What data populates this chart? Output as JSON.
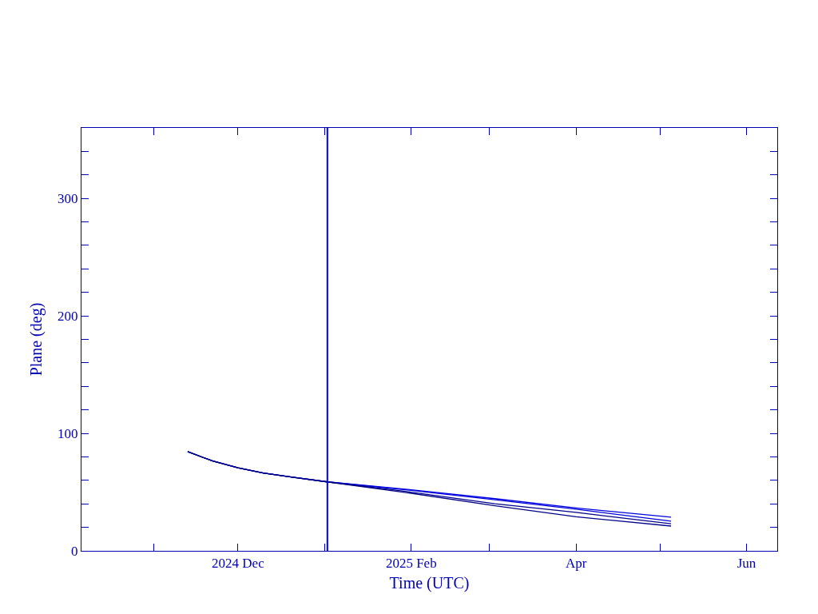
{
  "chart_data": {
    "type": "line",
    "xlabel": "Time (UTC)",
    "ylabel": "Plane (deg)",
    "xlim": [
      "2024-10-06",
      "2025-06-12"
    ],
    "ylim": [
      0,
      360
    ],
    "xticks": [
      {
        "value": "2024-11-01",
        "label": null
      },
      {
        "value": "2024-12-01",
        "label": "2024 Dec"
      },
      {
        "value": "2025-01-01",
        "label": null
      },
      {
        "value": "2025-02-01",
        "label": "2025 Feb"
      },
      {
        "value": "2025-03-01",
        "label": null
      },
      {
        "value": "2025-04-01",
        "label": "Apr"
      },
      {
        "value": "2025-05-01",
        "label": null
      },
      {
        "value": "2025-06-01",
        "label": "Jun"
      }
    ],
    "yticks": [
      0,
      {
        "value": 20,
        "label": null
      },
      {
        "value": 40,
        "label": null
      },
      {
        "value": 60,
        "label": null
      },
      {
        "value": 80,
        "label": null
      },
      100,
      {
        "value": 120,
        "label": null
      },
      {
        "value": 140,
        "label": null
      },
      {
        "value": 160,
        "label": null
      },
      {
        "value": 180,
        "label": null
      },
      200,
      {
        "value": 220,
        "label": null
      },
      {
        "value": 240,
        "label": null
      },
      {
        "value": 260,
        "label": null
      },
      {
        "value": 280,
        "label": null
      },
      300,
      {
        "value": 320,
        "label": null
      },
      {
        "value": 340,
        "label": null
      }
    ],
    "series": [
      {
        "color": "#0000e0",
        "x": [
          "2024-11-13",
          "2024-11-22",
          "2024-12-01",
          "2024-12-10",
          "2024-12-20",
          "2025-01-02",
          "2025-02-01",
          "2025-03-03",
          "2025-04-01",
          "2025-05-05"
        ],
        "values": [
          84.4,
          76.4,
          70.7,
          66.2,
          62.8,
          58.7,
          52,
          44.4,
          36.5,
          28.6
        ]
      },
      {
        "color": "#0000e0",
        "x": [
          "2024-11-13",
          "2024-11-22",
          "2024-12-01",
          "2024-12-10",
          "2024-12-20",
          "2025-01-02",
          "2025-02-01",
          "2025-03-03",
          "2025-04-01",
          "2025-05-05"
        ],
        "values": [
          84.4,
          76.4,
          70.7,
          66.2,
          62.8,
          58.7,
          51.5,
          43.5,
          35.5,
          25.2
        ]
      },
      {
        "color": "#00008b",
        "x": [
          "2024-11-13",
          "2024-11-22",
          "2024-12-01",
          "2024-12-10",
          "2024-12-20",
          "2025-01-02",
          "2025-02-01",
          "2025-03-03",
          "2025-04-01",
          "2025-05-05"
        ],
        "values": [
          84.4,
          76.4,
          70.7,
          66.2,
          62.8,
          58.7,
          50,
          40,
          32.7,
          23.1
        ]
      },
      {
        "color": "#00008b",
        "x": [
          "2024-11-13",
          "2024-11-22",
          "2024-12-01",
          "2024-12-10",
          "2024-12-20",
          "2025-01-02",
          "2025-02-01",
          "2025-03-03",
          "2025-04-01",
          "2025-05-05"
        ],
        "values": [
          84.4,
          76.4,
          70.7,
          66.2,
          62.8,
          58.7,
          49,
          38.4,
          29,
          21.1
        ]
      }
    ],
    "ref_lines": [
      {
        "axis": "x",
        "value": "2025-01-02",
        "color": "#0000e0"
      }
    ],
    "grid": false
  }
}
